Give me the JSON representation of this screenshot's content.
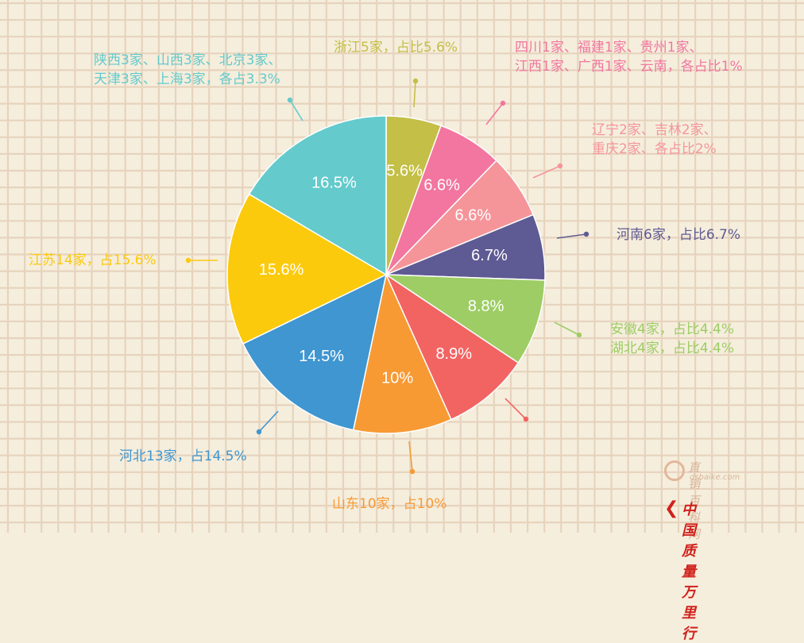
{
  "colors": {
    "background": "#f5eedd",
    "grid": "#e7d3bd"
  },
  "chart_data": {
    "type": "pie",
    "start_angle_deg": 0,
    "direction": "clockwise",
    "slices": [
      {
        "pct_label": "5.6%",
        "value": 5.6,
        "color": "#c4bf46",
        "label_lines": [
          "浙江5家，占比5.6%"
        ]
      },
      {
        "pct_label": "6.6%",
        "value": 6.6,
        "color": "#f2769f",
        "label_lines": [
          "四川1家、福建1家、贵州1家、",
          "江西1家、广西1家、云南，各占比1%"
        ]
      },
      {
        "pct_label": "6.6%",
        "value": 6.6,
        "color": "#f5959a",
        "label_lines": [
          "辽宁2家、吉林2家、",
          "重庆2家、各占比2%"
        ]
      },
      {
        "pct_label": "6.7%",
        "value": 6.7,
        "color": "#5e5a93",
        "label_lines": [
          "河南6家，占比6.7%"
        ]
      },
      {
        "pct_label": "8.8%",
        "value": 8.8,
        "color": "#9dcd64",
        "label_lines": [
          "安徽4家，占比4.4%",
          "湖北4家，占比4.4%"
        ]
      },
      {
        "pct_label": "8.9%",
        "value": 8.9,
        "color": "#f26462",
        "label_lines": []
      },
      {
        "pct_label": "10%",
        "value": 10,
        "color": "#f79a34",
        "label_lines": [
          "山东10家，占10%"
        ]
      },
      {
        "pct_label": "14.5%",
        "value": 14.5,
        "color": "#3f96d0",
        "label_lines": [
          "河北13家，占14.5%"
        ]
      },
      {
        "pct_label": "15.6%",
        "value": 15.6,
        "color": "#fcca0d",
        "label_lines": [
          "江苏14家，占15.6%"
        ]
      },
      {
        "pct_label": "16.5%",
        "value": 16.5,
        "color": "#64cacc",
        "label_lines": [
          "陕西3家、山西3家、北京3家、",
          "天津3家、上海3家，各占3.3%"
        ]
      }
    ]
  },
  "watermark": {
    "site_name": "直销百科网",
    "site_url": "dsbaike.com",
    "brand": "中国质量万里行",
    "brand_color": "#d0211c"
  }
}
